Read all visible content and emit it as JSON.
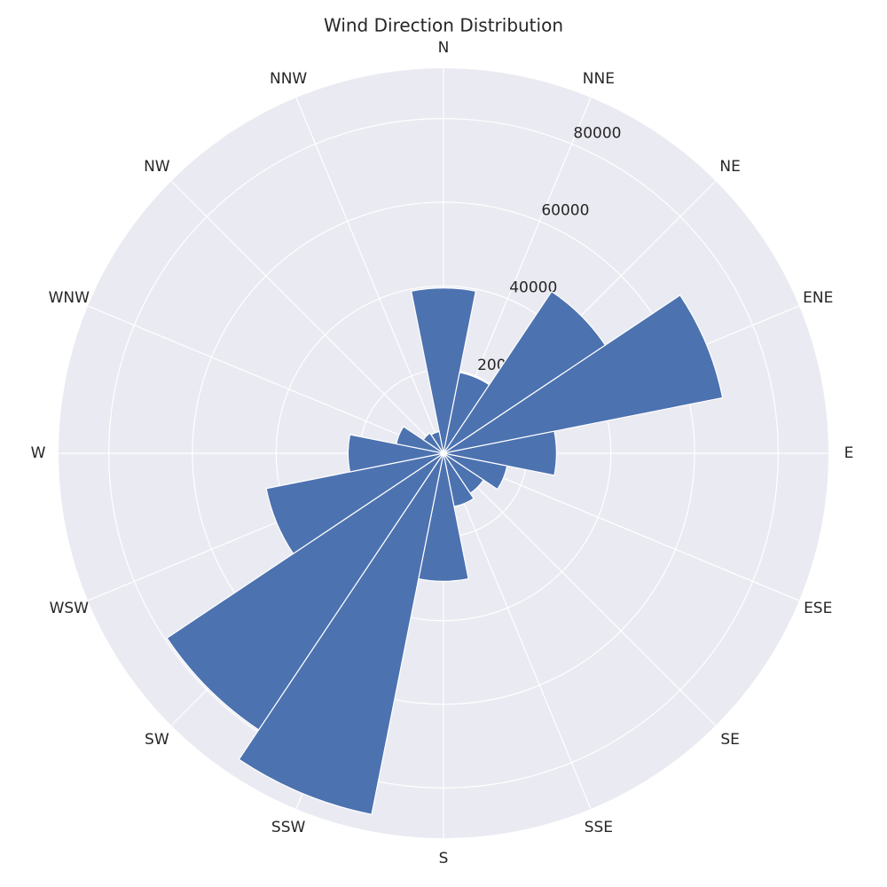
{
  "chart_data": {
    "type": "polar_bar",
    "title": "Wind Direction Distribution",
    "categories": [
      "N",
      "NNE",
      "NE",
      "ENE",
      "E",
      "ESE",
      "SE",
      "SSE",
      "S",
      "SSW",
      "SW",
      "WSW",
      "W",
      "WNW",
      "NW",
      "NNW"
    ],
    "values": [
      39500,
      19700,
      46500,
      68000,
      27000,
      15500,
      11500,
      13000,
      30600,
      88000,
      79500,
      43200,
      22800,
      11500,
      5800,
      5300
    ],
    "color": "#4c72b0",
    "rlim": [
      0,
      92000
    ],
    "rticks": [
      20000,
      40000,
      60000,
      80000
    ],
    "grid": true
  }
}
